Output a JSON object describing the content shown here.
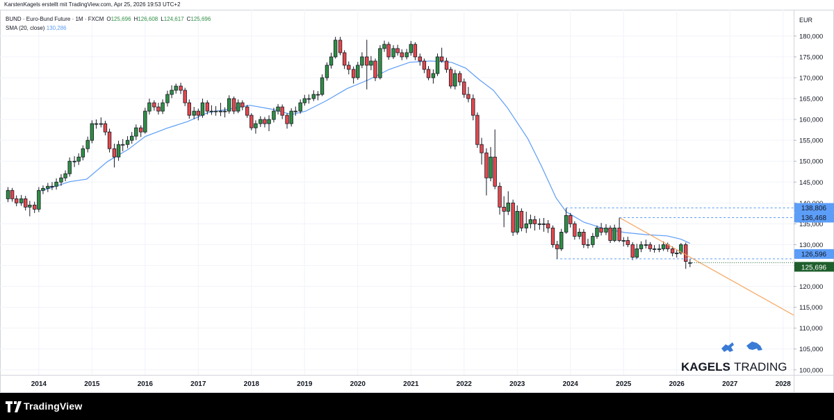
{
  "chart_data": {
    "type": "candlestick",
    "attribution": "KarstenKagels erstellt mit TradingView.com, Apr 25, 2026 19:53 UTC+2",
    "title": "BUND · Euro-Bund Future · 1M · FXCM",
    "ohlc": [
      {
        "key": "O",
        "value": "125,696"
      },
      {
        "key": "H",
        "value": "126,608"
      },
      {
        "key": "L",
        "value": "124,617"
      },
      {
        "key": "C",
        "value": "125,696"
      }
    ],
    "currency": "EUR",
    "up_color": "#2f8f45",
    "down_color": "#e5484d",
    "grid": true,
    "xlim": [
      2013.27,
      2028.2
    ],
    "xticks": [
      2014,
      2015,
      2016,
      2017,
      2018,
      2019,
      2020,
      2021,
      2022,
      2023,
      2024,
      2025,
      2026,
      2027,
      2028
    ],
    "ylim": [
      98.8,
      186.3
    ],
    "yticks": [
      {
        "value": 100,
        "label": "100,000"
      },
      {
        "value": 105,
        "label": "105,000"
      },
      {
        "value": 110,
        "label": "110,000"
      },
      {
        "value": 115,
        "label": "115,000"
      },
      {
        "value": 120,
        "label": "120,000"
      },
      {
        "value": 125,
        "label": "125,000"
      },
      {
        "value": 130,
        "label": "130,000"
      },
      {
        "value": 135,
        "label": "135,000"
      },
      {
        "value": 140,
        "label": "140,000"
      },
      {
        "value": 145,
        "label": "145,000"
      },
      {
        "value": 150,
        "label": "150,000"
      },
      {
        "value": 155,
        "label": "155,000"
      },
      {
        "value": 160,
        "label": "160,000"
      },
      {
        "value": 165,
        "label": "165,000"
      },
      {
        "value": 170,
        "label": "170,000"
      },
      {
        "value": 175,
        "label": "175,000"
      },
      {
        "value": 180,
        "label": "180,000"
      }
    ],
    "candles": [
      [
        2013.42,
        141,
        143.8,
        140.2,
        143
      ],
      [
        2013.5,
        143,
        143.6,
        140.3,
        141
      ],
      [
        2013.58,
        141,
        141.8,
        139.2,
        140
      ],
      [
        2013.67,
        140,
        141.9,
        139.3,
        141
      ],
      [
        2013.75,
        141,
        141.7,
        138.2,
        139
      ],
      [
        2013.83,
        139,
        140.5,
        136.8,
        139.5
      ],
      [
        2013.92,
        139.5,
        140.3,
        137.6,
        138.5
      ],
      [
        2014.0,
        138.5,
        143.8,
        137.8,
        143
      ],
      [
        2014.08,
        143,
        144.2,
        142.1,
        143.5
      ],
      [
        2014.17,
        143.5,
        144.8,
        142.6,
        144
      ],
      [
        2014.25,
        144,
        145,
        143.1,
        144
      ],
      [
        2014.33,
        144,
        145.9,
        143.2,
        145
      ],
      [
        2014.42,
        145,
        146.9,
        144.1,
        146
      ],
      [
        2014.5,
        146,
        147.8,
        145.2,
        147
      ],
      [
        2014.58,
        147,
        150.9,
        146.3,
        150
      ],
      [
        2014.67,
        150,
        151.2,
        148.6,
        150
      ],
      [
        2014.75,
        150,
        151.9,
        149.1,
        151
      ],
      [
        2014.83,
        151,
        153.8,
        150.2,
        153
      ],
      [
        2014.92,
        153,
        155.9,
        152.1,
        155
      ],
      [
        2015.0,
        155,
        159.8,
        154.3,
        159
      ],
      [
        2015.08,
        159,
        160,
        157.8,
        159
      ],
      [
        2015.17,
        159,
        160.5,
        158.1,
        159
      ],
      [
        2015.25,
        159,
        159.7,
        156.2,
        157
      ],
      [
        2015.33,
        157,
        157.8,
        152.1,
        153
      ],
      [
        2015.42,
        153,
        154.2,
        148.5,
        151
      ],
      [
        2015.5,
        151,
        154.9,
        150.1,
        154
      ],
      [
        2015.58,
        154,
        155.3,
        152.4,
        154
      ],
      [
        2015.67,
        154,
        156,
        153.1,
        155
      ],
      [
        2015.75,
        155,
        157,
        154.2,
        156
      ],
      [
        2015.83,
        156,
        158.8,
        155.1,
        158
      ],
      [
        2015.92,
        158,
        158.6,
        155.8,
        157
      ],
      [
        2016.0,
        157,
        162.8,
        156.6,
        162
      ],
      [
        2016.08,
        162,
        165,
        161.2,
        164
      ],
      [
        2016.17,
        164,
        164.6,
        162.1,
        163
      ],
      [
        2016.25,
        163,
        164,
        161.2,
        162
      ],
      [
        2016.33,
        162,
        164.8,
        161.3,
        164
      ],
      [
        2016.42,
        164,
        166.9,
        163.1,
        166
      ],
      [
        2016.5,
        166,
        168.2,
        165.1,
        167
      ],
      [
        2016.58,
        167,
        168.6,
        166.2,
        168
      ],
      [
        2016.67,
        168,
        168.8,
        166.1,
        167
      ],
      [
        2016.75,
        167,
        167.6,
        163.2,
        164
      ],
      [
        2016.83,
        164,
        164.8,
        160.2,
        161
      ],
      [
        2016.92,
        161,
        163,
        160.1,
        162
      ],
      [
        2017.0,
        162,
        162.6,
        159.8,
        161
      ],
      [
        2017.08,
        161,
        165,
        160.4,
        164
      ],
      [
        2017.17,
        164,
        164.6,
        161.2,
        162
      ],
      [
        2017.25,
        162,
        163.4,
        161.1,
        162
      ],
      [
        2017.33,
        162,
        163.2,
        160.9,
        162
      ],
      [
        2017.42,
        162,
        164,
        160.8,
        162
      ],
      [
        2017.5,
        162,
        162.9,
        160.5,
        162
      ],
      [
        2017.58,
        162,
        165.8,
        161.4,
        165
      ],
      [
        2017.67,
        165,
        165.5,
        161.3,
        162
      ],
      [
        2017.75,
        162,
        164.8,
        161.5,
        164
      ],
      [
        2017.83,
        164,
        164.6,
        162.2,
        163
      ],
      [
        2017.92,
        163,
        163.5,
        160.4,
        161
      ],
      [
        2018.0,
        161,
        161.5,
        157.4,
        158
      ],
      [
        2018.08,
        158,
        159.8,
        156.6,
        159
      ],
      [
        2018.17,
        159,
        160.8,
        158.2,
        160
      ],
      [
        2018.25,
        160,
        160.6,
        158.1,
        159
      ],
      [
        2018.33,
        159,
        161,
        157.2,
        160
      ],
      [
        2018.42,
        160,
        162.8,
        159.3,
        162
      ],
      [
        2018.5,
        162,
        163.7,
        161.2,
        163
      ],
      [
        2018.58,
        163,
        163.6,
        160.1,
        161
      ],
      [
        2018.67,
        161,
        161.5,
        157.8,
        159
      ],
      [
        2018.75,
        159,
        162.7,
        158.3,
        162
      ],
      [
        2018.83,
        162,
        163.1,
        160.9,
        162
      ],
      [
        2018.92,
        162,
        164.8,
        161.4,
        164
      ],
      [
        2019.0,
        164,
        165.9,
        163.3,
        165
      ],
      [
        2019.08,
        165,
        166,
        163.8,
        165
      ],
      [
        2019.17,
        165,
        167,
        164.4,
        166
      ],
      [
        2019.25,
        166,
        166.8,
        164.6,
        166
      ],
      [
        2019.33,
        166,
        170.8,
        165.6,
        170
      ],
      [
        2019.42,
        170,
        173.7,
        169.3,
        173
      ],
      [
        2019.5,
        173,
        176,
        172.2,
        175
      ],
      [
        2019.58,
        175,
        179.8,
        174.6,
        179
      ],
      [
        2019.67,
        179,
        179.8,
        175.4,
        176
      ],
      [
        2019.75,
        176,
        176.6,
        172.1,
        173
      ],
      [
        2019.83,
        173,
        173.9,
        170.8,
        172
      ],
      [
        2019.92,
        172,
        172.7,
        168.6,
        170
      ],
      [
        2020.0,
        170,
        173.8,
        169.5,
        173
      ],
      [
        2020.08,
        173,
        176.1,
        172.3,
        175
      ],
      [
        2020.17,
        175,
        179.1,
        167.2,
        173
      ],
      [
        2020.25,
        173,
        175.2,
        171.8,
        174
      ],
      [
        2020.33,
        174,
        174.6,
        169.2,
        170
      ],
      [
        2020.42,
        170,
        177.8,
        169.6,
        177
      ],
      [
        2020.5,
        177,
        178.9,
        176.2,
        178
      ],
      [
        2020.58,
        178,
        178.6,
        174.3,
        175
      ],
      [
        2020.67,
        175,
        177.8,
        174.5,
        177
      ],
      [
        2020.75,
        177,
        177.9,
        175.3,
        176
      ],
      [
        2020.83,
        176,
        176.8,
        174.2,
        175
      ],
      [
        2020.92,
        175,
        176.9,
        174.4,
        176
      ],
      [
        2021.0,
        176,
        178.8,
        175.3,
        178
      ],
      [
        2021.08,
        178,
        178.5,
        174.2,
        175
      ],
      [
        2021.17,
        175,
        175.8,
        172.9,
        174
      ],
      [
        2021.25,
        174,
        174.6,
        171.1,
        172
      ],
      [
        2021.33,
        172,
        172.8,
        169.4,
        170
      ],
      [
        2021.42,
        170,
        172,
        168.6,
        171
      ],
      [
        2021.5,
        171,
        175.8,
        170.4,
        175
      ],
      [
        2021.58,
        175,
        177.2,
        173.6,
        174
      ],
      [
        2021.67,
        174,
        174.8,
        171.2,
        172
      ],
      [
        2021.75,
        172,
        172.6,
        167.4,
        168
      ],
      [
        2021.83,
        168,
        171.9,
        167.2,
        171
      ],
      [
        2021.92,
        171,
        171.6,
        168.1,
        169
      ],
      [
        2022.0,
        169,
        169.8,
        165.2,
        166
      ],
      [
        2022.08,
        166,
        167.8,
        164.1,
        165
      ],
      [
        2022.17,
        165,
        166,
        159.8,
        161
      ],
      [
        2022.25,
        161,
        161.7,
        153.2,
        154
      ],
      [
        2022.33,
        154,
        155.6,
        149.2,
        152
      ],
      [
        2022.42,
        152,
        153.1,
        141.8,
        146
      ],
      [
        2022.5,
        146,
        153.4,
        145.2,
        151
      ],
      [
        2022.58,
        151,
        157.6,
        143.3,
        144
      ],
      [
        2022.67,
        144,
        144.9,
        137.2,
        139
      ],
      [
        2022.75,
        139,
        141.6,
        134.2,
        138
      ],
      [
        2022.83,
        138,
        142.8,
        137.1,
        140
      ],
      [
        2022.92,
        140,
        140.8,
        132.1,
        133
      ],
      [
        2023.0,
        133,
        139.4,
        132.4,
        138
      ],
      [
        2023.08,
        138,
        138.7,
        133.2,
        134
      ],
      [
        2023.17,
        134,
        137.9,
        132.8,
        135
      ],
      [
        2023.25,
        135,
        137.2,
        133.9,
        136
      ],
      [
        2023.33,
        136,
        136.9,
        133.4,
        135
      ],
      [
        2023.42,
        135,
        136.3,
        133.6,
        135
      ],
      [
        2023.5,
        135,
        136.4,
        133.1,
        135
      ],
      [
        2023.58,
        135,
        135.9,
        132.8,
        134
      ],
      [
        2023.67,
        134,
        134.6,
        129.3,
        130
      ],
      [
        2023.75,
        130,
        130.9,
        126.6,
        129
      ],
      [
        2023.83,
        129,
        133.8,
        128.5,
        133
      ],
      [
        2023.92,
        133,
        138.8,
        132.6,
        137
      ],
      [
        2024.0,
        137,
        137.6,
        134.1,
        135
      ],
      [
        2024.08,
        135,
        135.6,
        131.2,
        132
      ],
      [
        2024.17,
        132,
        133.9,
        131.3,
        133
      ],
      [
        2024.25,
        133,
        133.7,
        129.2,
        130
      ],
      [
        2024.33,
        130,
        131.4,
        129.1,
        130
      ],
      [
        2024.42,
        130,
        132.8,
        129.3,
        132
      ],
      [
        2024.5,
        132,
        134.6,
        131.4,
        134
      ],
      [
        2024.58,
        134,
        135.2,
        132.2,
        133
      ],
      [
        2024.67,
        133,
        134.9,
        132.3,
        134
      ],
      [
        2024.75,
        134,
        134.6,
        130.4,
        131
      ],
      [
        2024.83,
        131,
        134.8,
        130.6,
        134
      ],
      [
        2024.92,
        134,
        136.5,
        130.6,
        131
      ],
      [
        2025.0,
        131,
        131.8,
        129.6,
        131
      ],
      [
        2025.08,
        131,
        131.9,
        129.4,
        130
      ],
      [
        2025.17,
        130,
        130.6,
        126.3,
        127
      ],
      [
        2025.25,
        127,
        130.2,
        126.6,
        129
      ],
      [
        2025.33,
        129,
        130.8,
        128.2,
        130
      ],
      [
        2025.42,
        130,
        131.2,
        129.1,
        130
      ],
      [
        2025.5,
        130,
        130.6,
        128.3,
        129
      ],
      [
        2025.58,
        129,
        129.9,
        128.1,
        129
      ],
      [
        2025.67,
        129,
        130.1,
        128.2,
        129
      ],
      [
        2025.75,
        129,
        130.8,
        128.5,
        130
      ],
      [
        2025.83,
        130,
        130.5,
        128.3,
        129
      ],
      [
        2025.92,
        129,
        129.6,
        127.2,
        128
      ],
      [
        2026.0,
        128,
        128.8,
        126.9,
        128
      ],
      [
        2026.08,
        128,
        130.4,
        127.6,
        130
      ],
      [
        2026.17,
        130,
        130.5,
        124.2,
        126
      ],
      [
        2026.25,
        125.696,
        126.608,
        124.617,
        125.696
      ]
    ],
    "sma": {
      "name": "SMA (20, close)",
      "value_label": "130,286",
      "color": "#5b9cf6",
      "x": [
        2014.05,
        2014.58,
        2014.9,
        2015.29,
        2015.69,
        2016.0,
        2016.41,
        2016.8,
        2017.19,
        2017.58,
        2017.97,
        2018.37,
        2018.76,
        2019.02,
        2019.41,
        2019.8,
        2020.2,
        2020.59,
        2020.98,
        2021.37,
        2021.76,
        2022.03,
        2022.29,
        2022.55,
        2022.81,
        2023.2,
        2023.46,
        2023.73,
        2023.92,
        2024.25,
        2024.64,
        2025.03,
        2025.42,
        2025.82,
        2026.08,
        2026.25
      ],
      "values": [
        142.9,
        145.1,
        145.7,
        149.9,
        152.9,
        155.9,
        157.9,
        159.5,
        161.7,
        162.5,
        163.4,
        162.5,
        161.2,
        162,
        164.5,
        167.4,
        169.5,
        172,
        173.7,
        174,
        173.7,
        172.3,
        169.5,
        167,
        162.9,
        155.4,
        148.7,
        141.2,
        137.9,
        135.4,
        133.8,
        132.9,
        132.4,
        132.1,
        131.3,
        130.3
      ]
    },
    "trendline": {
      "x": [
        2024.92,
        2028.2
      ],
      "y": [
        136.5,
        113.1
      ],
      "color": "#f5a35c"
    },
    "levels": [
      {
        "value": 138.806,
        "label": "138,806",
        "x_start": 2023.92,
        "color": "#5b9cf6"
      },
      {
        "value": 136.468,
        "label": "136,468",
        "x_start": 2024.92,
        "color": "#5b9cf6"
      },
      {
        "value": 126.596,
        "label": "126,596",
        "x_start": 2023.73,
        "color": "#5b9cf6"
      }
    ],
    "last_price": {
      "value": 125.696,
      "label": "125,696",
      "color": "#1e5e2c"
    },
    "brand": {
      "left": "KAGELS",
      "right": "TRADING"
    },
    "footer": "TradingView"
  }
}
